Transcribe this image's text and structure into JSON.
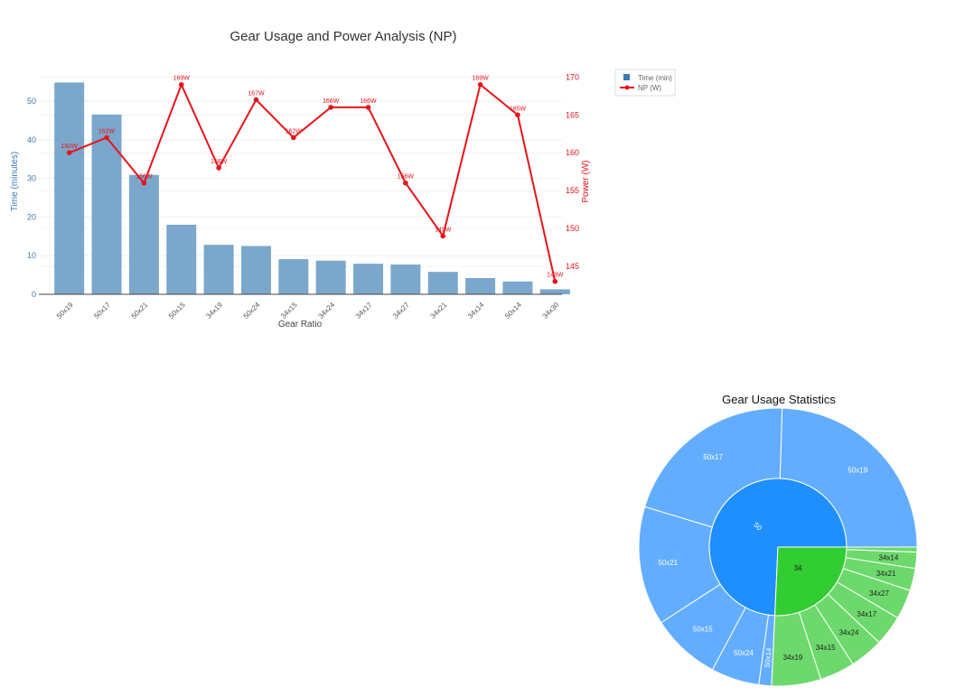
{
  "chart_data": [
    {
      "type": "bar",
      "title": "Gear Usage and Power Analysis (NP)",
      "xlabel": "Gear Ratio",
      "ylabel": "Time (minutes)",
      "y2label": "Power (W)",
      "categories": [
        "50x19",
        "50x17",
        "50x21",
        "50x15",
        "34x19",
        "50x24",
        "34x15",
        "34x24",
        "34x17",
        "34x27",
        "34x21",
        "34x14",
        "50x14",
        "34x30"
      ],
      "ylim": [
        0,
        57
      ],
      "y2lim": [
        141.3,
        170.4
      ],
      "yticks": [
        0,
        10,
        20,
        30,
        40,
        50
      ],
      "y2ticks": [
        145,
        150,
        155,
        160,
        165,
        170
      ],
      "grid": true,
      "legend_position": "top-right",
      "series": [
        {
          "name": "Time (min)",
          "kind": "bar",
          "axis": "y",
          "color": "#7ba7cc",
          "legend_color": "#3a78b6",
          "values": [
            54.8,
            46.5,
            30.9,
            18.0,
            12.8,
            12.5,
            9.1,
            8.7,
            7.9,
            7.7,
            5.8,
            4.2,
            3.3,
            1.3
          ]
        },
        {
          "name": "NP (W)",
          "kind": "line",
          "axis": "y2",
          "color": "#e8141a",
          "values": [
            160,
            162,
            156,
            169,
            158,
            167,
            162,
            166,
            166,
            156,
            149,
            169,
            165,
            143
          ],
          "data_labels": [
            "160W",
            "162W",
            "156W",
            "169W",
            "158W",
            "167W",
            "162W",
            "166W",
            "166W",
            "156W",
            "149W",
            "169W",
            "165W",
            "143W"
          ]
        }
      ]
    },
    {
      "type": "sunburst",
      "title": "Gear Usage Statistics",
      "colors": {
        "50": "#1f8fff",
        "34": "#32cd32",
        "50_leaf": "#63adff",
        "34_leaf": "#6dd96d"
      },
      "rings": [
        {
          "label": "50",
          "children": [
            {
              "label": "50x19",
              "value": 54.8
            },
            {
              "label": "50x17",
              "value": 46.5
            },
            {
              "label": "50x21",
              "value": 30.9
            },
            {
              "label": "50x15",
              "value": 18.0
            },
            {
              "label": "50x24",
              "value": 12.5
            },
            {
              "label": "50x14",
              "value": 3.3
            }
          ]
        },
        {
          "label": "34",
          "children": [
            {
              "label": "34x19",
              "value": 12.8
            },
            {
              "label": "34x15",
              "value": 9.1
            },
            {
              "label": "34x24",
              "value": 8.7
            },
            {
              "label": "34x17",
              "value": 7.9
            },
            {
              "label": "34x27",
              "value": 7.7
            },
            {
              "label": "34x21",
              "value": 5.8
            },
            {
              "label": "34x14",
              "value": 4.2
            },
            {
              "label": "34x30",
              "value": 1.3
            }
          ]
        }
      ]
    }
  ]
}
